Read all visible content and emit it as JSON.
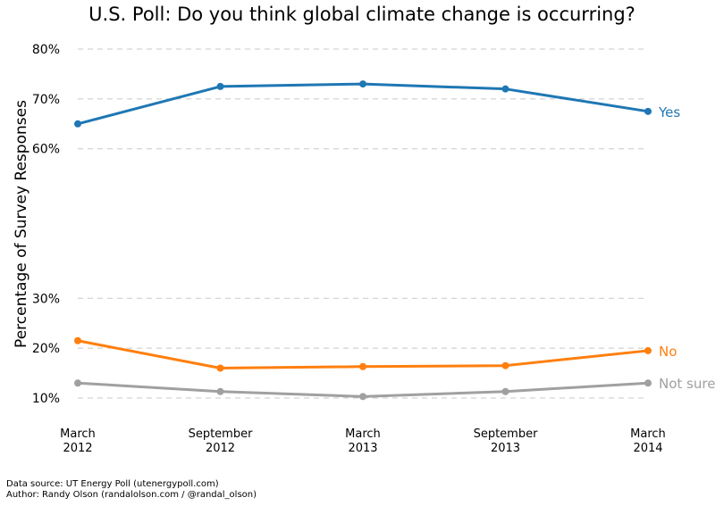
{
  "chart_data": {
    "type": "line",
    "title": "U.S. Poll: Do you think global climate change is occurring?",
    "ylabel": "Percentage of Survey Responses",
    "xlabel": "",
    "categories": [
      [
        "March",
        "2012"
      ],
      [
        "September",
        "2012"
      ],
      [
        "March",
        "2013"
      ],
      [
        "September",
        "2013"
      ],
      [
        "March",
        "2014"
      ]
    ],
    "y_ticks": [
      {
        "value": 10,
        "label": "10%"
      },
      {
        "value": 20,
        "label": "20%"
      },
      {
        "value": 30,
        "label": "30%"
      },
      {
        "value": 60,
        "label": "60%"
      },
      {
        "value": 70,
        "label": "70%"
      },
      {
        "value": 80,
        "label": "80%"
      }
    ],
    "ylim": [
      10,
      80
    ],
    "grid": "horizontal dashed",
    "legend": "labels at line ends (right)",
    "series": [
      {
        "name": "Yes",
        "color": "#1f77b4",
        "values": [
          65,
          72.5,
          73,
          72,
          67.5
        ]
      },
      {
        "name": "No",
        "color": "#ff7f0e",
        "values": [
          21.5,
          16,
          16.3,
          16.5,
          19.5
        ]
      },
      {
        "name": "Not sure",
        "color": "#a0a0a0",
        "values": [
          13,
          11.3,
          10.3,
          11.3,
          13
        ]
      }
    ]
  },
  "footer": {
    "source": "Data source: UT Energy Poll (utenergypoll.com)",
    "author": "Author: Randy Olson (randalolson.com / @randal_olson)"
  }
}
